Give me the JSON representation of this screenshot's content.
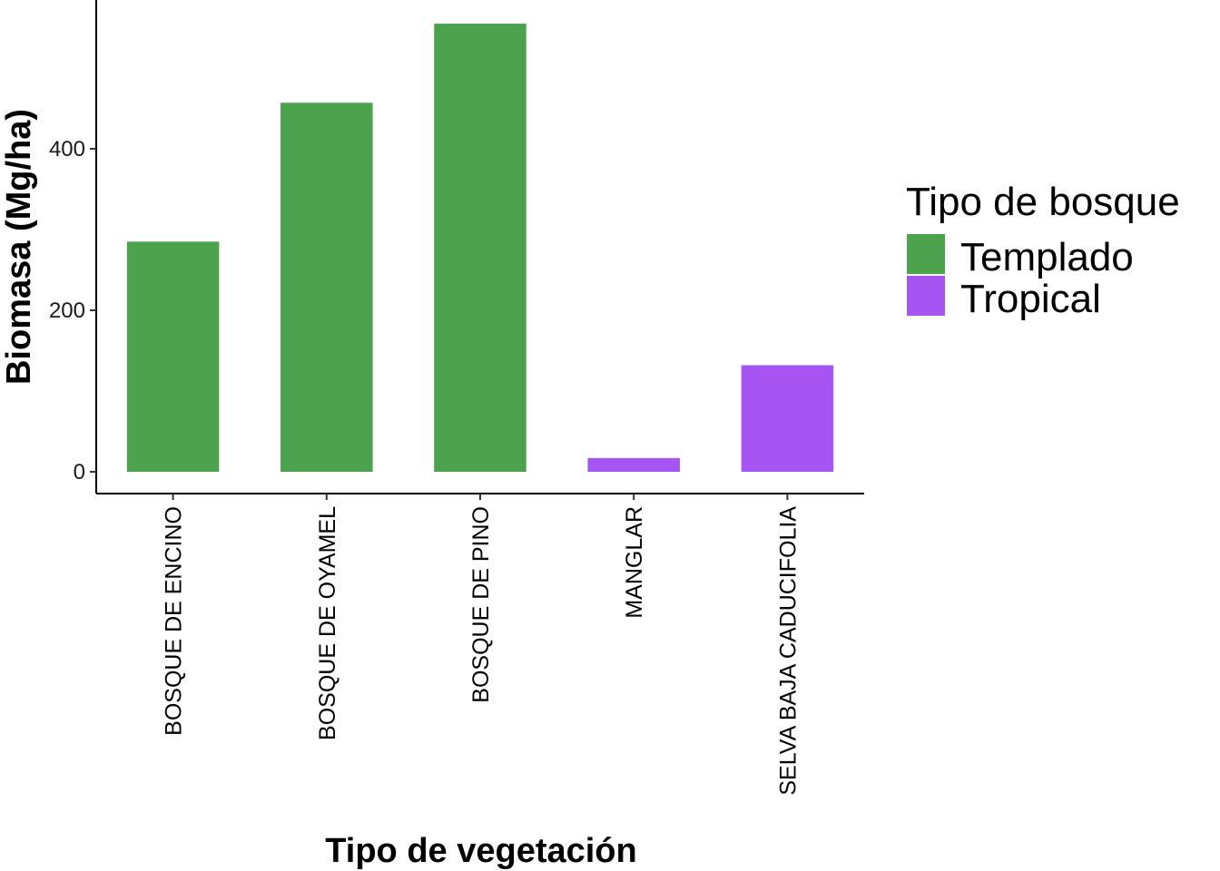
{
  "chart_data": {
    "type": "bar",
    "title": "",
    "xlabel": "Tipo de vegetación",
    "ylabel": "Biomasa (Mg/ha)",
    "categories": [
      "BOSQUE DE ENCINO",
      "BOSQUE DE OYAMEL",
      "BOSQUE DE PINO",
      "MANGLAR",
      "SELVA BAJA CADUCIFOLIA"
    ],
    "values": [
      285,
      457,
      555,
      17,
      132
    ],
    "groups": [
      "Templado",
      "Templado",
      "Templado",
      "Tropical",
      "Tropical"
    ],
    "yticks": [
      0,
      200,
      400
    ],
    "ylim": [
      0,
      580
    ],
    "grid": false,
    "legend": {
      "title": "Tipo de bosque",
      "placement": "right",
      "items": [
        {
          "label": "Templado",
          "color": "#4da24e"
        },
        {
          "label": "Tropical",
          "color": "#a654f2"
        }
      ]
    }
  }
}
